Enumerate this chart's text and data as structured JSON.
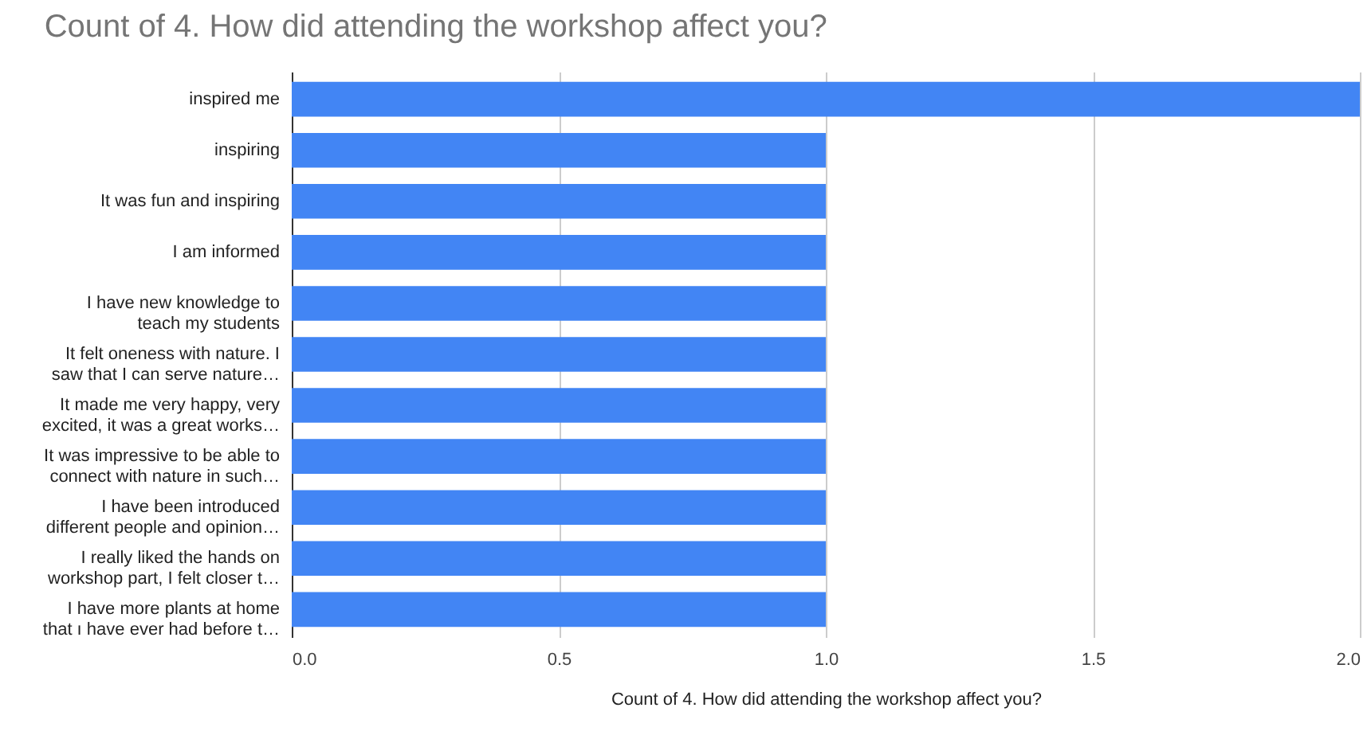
{
  "chart_data": {
    "type": "bar",
    "orientation": "horizontal",
    "title": "Count of 4. How did attending the workshop affect you?",
    "xlabel": "Count of 4. How did attending the workshop affect you?",
    "categories": [
      "inspired me",
      "inspiring",
      "It was fun and inspiring",
      "I am informed",
      "I have new knowledge to\nteach my students",
      "It felt oneness with nature. I\nsaw that I can serve nature…",
      "It made me very happy, very\nexcited, it was a great works…",
      "It was impressive to be able to\nconnect with nature in such…",
      "I have been introduced\ndifferent people and opinion…",
      "I really liked the hands on\nworkshop part, I felt closer t…",
      "I have more plants at home\nthat ı have ever had before t…"
    ],
    "values": [
      2,
      1,
      1,
      1,
      1,
      1,
      1,
      1,
      1,
      1,
      1
    ],
    "color": "#4285f4",
    "xlim": [
      0,
      2
    ],
    "xticks": [
      {
        "value": 0,
        "label": "0.0"
      },
      0.5,
      {
        "value": 1,
        "label": "1.0"
      },
      1.5,
      {
        "value": 2,
        "label": "2.0"
      }
    ],
    "grid": "x"
  }
}
